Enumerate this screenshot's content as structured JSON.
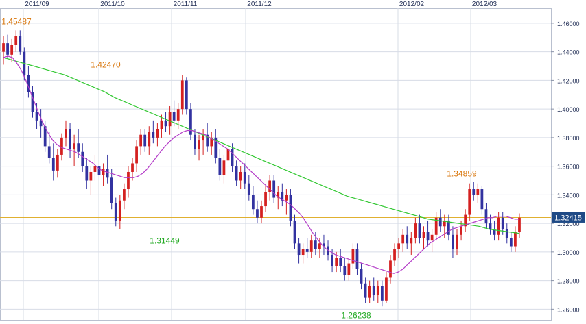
{
  "chart_data": {
    "type": "candlestick",
    "x_ticks": [
      "2011/09",
      "2011/10",
      "2011/11",
      "2011/12",
      "2012/02",
      "2012/03"
    ],
    "y_ticks": [
      "1.46000",
      "1.44000",
      "1.42000",
      "1.40000",
      "1.38000",
      "1.36000",
      "1.34000",
      "1.32000",
      "1.30000",
      "1.28000",
      "1.26000"
    ],
    "ylim": [
      1.2525,
      1.4705
    ],
    "current_price": 1.32415,
    "current_price_label": "1.32415",
    "annotations": [
      {
        "label": "1.45487",
        "value": 1.45487,
        "kind": "high",
        "color": "#d9770d"
      },
      {
        "label": "1.31449",
        "value": 1.31449,
        "kind": "low",
        "color": "#22aa22"
      },
      {
        "label": "1.42470",
        "value": 1.4247,
        "kind": "high",
        "color": "#d9770d"
      },
      {
        "label": "1.26238",
        "value": 1.26238,
        "kind": "low",
        "color": "#22aa22"
      },
      {
        "label": "1.34859",
        "value": 1.34859,
        "kind": "high",
        "color": "#d9770d"
      }
    ],
    "colors": {
      "up": "#d42020",
      "down": "#3232a0",
      "short_ma": "#b43cc8",
      "long_ma": "#32c832",
      "price_line": "#e0b030",
      "price_box": "#1f4a86",
      "grid": "#d7dce6",
      "tick_text": "#1d2a52"
    },
    "candles": [
      [
        1.44,
        1.451,
        1.431,
        1.446
      ],
      [
        1.446,
        1.452,
        1.436,
        1.438
      ],
      [
        1.438,
        1.449,
        1.433,
        1.445
      ],
      [
        1.445,
        1.455,
        1.44,
        1.451
      ],
      [
        1.451,
        1.455,
        1.438,
        1.44
      ],
      [
        1.44,
        1.443,
        1.42,
        1.424
      ],
      [
        1.424,
        1.43,
        1.408,
        1.412
      ],
      [
        1.412,
        1.416,
        1.394,
        1.398
      ],
      [
        1.398,
        1.404,
        1.386,
        1.392
      ],
      [
        1.392,
        1.4,
        1.38,
        1.388
      ],
      [
        1.388,
        1.392,
        1.37,
        1.374
      ],
      [
        1.374,
        1.384,
        1.362,
        1.366
      ],
      [
        1.366,
        1.376,
        1.35,
        1.357
      ],
      [
        1.357,
        1.372,
        1.352,
        1.368
      ],
      [
        1.368,
        1.383,
        1.364,
        1.38
      ],
      [
        1.38,
        1.392,
        1.374,
        1.386
      ],
      [
        1.386,
        1.39,
        1.366,
        1.372
      ],
      [
        1.372,
        1.382,
        1.36,
        1.376
      ],
      [
        1.376,
        1.386,
        1.366,
        1.37
      ],
      [
        1.37,
        1.376,
        1.356,
        1.36
      ],
      [
        1.36,
        1.366,
        1.344,
        1.35
      ],
      [
        1.35,
        1.36,
        1.34,
        1.356
      ],
      [
        1.356,
        1.368,
        1.35,
        1.36
      ],
      [
        1.36,
        1.366,
        1.35,
        1.354
      ],
      [
        1.354,
        1.362,
        1.346,
        1.358
      ],
      [
        1.358,
        1.368,
        1.348,
        1.352
      ],
      [
        1.352,
        1.358,
        1.33,
        1.334
      ],
      [
        1.334,
        1.338,
        1.318,
        1.322
      ],
      [
        1.322,
        1.34,
        1.316,
        1.336
      ],
      [
        1.336,
        1.348,
        1.33,
        1.344
      ],
      [
        1.344,
        1.36,
        1.338,
        1.356
      ],
      [
        1.356,
        1.366,
        1.35,
        1.362
      ],
      [
        1.362,
        1.378,
        1.356,
        1.374
      ],
      [
        1.374,
        1.386,
        1.368,
        1.382
      ],
      [
        1.382,
        1.386,
        1.37,
        1.374
      ],
      [
        1.374,
        1.388,
        1.368,
        1.384
      ],
      [
        1.384,
        1.392,
        1.376,
        1.38
      ],
      [
        1.38,
        1.39,
        1.374,
        1.386
      ],
      [
        1.386,
        1.396,
        1.38,
        1.392
      ],
      [
        1.392,
        1.398,
        1.384,
        1.388
      ],
      [
        1.388,
        1.402,
        1.382,
        1.398
      ],
      [
        1.398,
        1.406,
        1.388,
        1.392
      ],
      [
        1.392,
        1.404,
        1.386,
        1.4
      ],
      [
        1.4,
        1.424,
        1.396,
        1.42
      ],
      [
        1.42,
        1.422,
        1.396,
        1.4
      ],
      [
        1.4,
        1.404,
        1.378,
        1.382
      ],
      [
        1.382,
        1.386,
        1.368,
        1.372
      ],
      [
        1.372,
        1.382,
        1.364,
        1.378
      ],
      [
        1.378,
        1.386,
        1.368,
        1.382
      ],
      [
        1.382,
        1.39,
        1.37,
        1.374
      ],
      [
        1.374,
        1.384,
        1.368,
        1.38
      ],
      [
        1.38,
        1.386,
        1.362,
        1.366
      ],
      [
        1.366,
        1.372,
        1.35,
        1.354
      ],
      [
        1.354,
        1.368,
        1.348,
        1.364
      ],
      [
        1.364,
        1.378,
        1.358,
        1.372
      ],
      [
        1.372,
        1.376,
        1.356,
        1.36
      ],
      [
        1.36,
        1.364,
        1.346,
        1.35
      ],
      [
        1.35,
        1.36,
        1.344,
        1.356
      ],
      [
        1.356,
        1.362,
        1.344,
        1.348
      ],
      [
        1.348,
        1.354,
        1.336,
        1.34
      ],
      [
        1.34,
        1.346,
        1.326,
        1.33
      ],
      [
        1.33,
        1.336,
        1.32,
        1.324
      ],
      [
        1.324,
        1.336,
        1.32,
        1.332
      ],
      [
        1.332,
        1.346,
        1.328,
        1.342
      ],
      [
        1.342,
        1.354,
        1.336,
        1.35
      ],
      [
        1.35,
        1.354,
        1.334,
        1.338
      ],
      [
        1.338,
        1.346,
        1.33,
        1.342
      ],
      [
        1.342,
        1.348,
        1.332,
        1.336
      ],
      [
        1.336,
        1.344,
        1.326,
        1.34
      ],
      [
        1.34,
        1.344,
        1.318,
        1.322
      ],
      [
        1.322,
        1.326,
        1.302,
        1.306
      ],
      [
        1.306,
        1.31,
        1.292,
        1.298
      ],
      [
        1.298,
        1.306,
        1.292,
        1.302
      ],
      [
        1.302,
        1.31,
        1.296,
        1.3
      ],
      [
        1.3,
        1.312,
        1.296,
        1.308
      ],
      [
        1.308,
        1.314,
        1.298,
        1.302
      ],
      [
        1.302,
        1.31,
        1.296,
        1.306
      ],
      [
        1.306,
        1.312,
        1.298,
        1.304
      ],
      [
        1.304,
        1.308,
        1.294,
        1.298
      ],
      [
        1.298,
        1.302,
        1.286,
        1.29
      ],
      [
        1.29,
        1.3,
        1.286,
        1.296
      ],
      [
        1.296,
        1.302,
        1.286,
        1.29
      ],
      [
        1.29,
        1.296,
        1.28,
        1.284
      ],
      [
        1.284,
        1.296,
        1.28,
        1.292
      ],
      [
        1.292,
        1.306,
        1.288,
        1.302
      ],
      [
        1.302,
        1.306,
        1.284,
        1.288
      ],
      [
        1.288,
        1.292,
        1.274,
        1.278
      ],
      [
        1.278,
        1.282,
        1.264,
        1.268
      ],
      [
        1.268,
        1.28,
        1.264,
        1.276
      ],
      [
        1.276,
        1.282,
        1.266,
        1.27
      ],
      [
        1.27,
        1.28,
        1.264,
        1.276
      ],
      [
        1.276,
        1.28,
        1.262,
        1.266
      ],
      [
        1.266,
        1.286,
        1.264,
        1.282
      ],
      [
        1.282,
        1.298,
        1.278,
        1.294
      ],
      [
        1.294,
        1.306,
        1.29,
        1.302
      ],
      [
        1.302,
        1.31,
        1.296,
        1.306
      ],
      [
        1.306,
        1.316,
        1.3,
        1.312
      ],
      [
        1.312,
        1.318,
        1.302,
        1.306
      ],
      [
        1.306,
        1.314,
        1.298,
        1.31
      ],
      [
        1.31,
        1.324,
        1.306,
        1.32
      ],
      [
        1.32,
        1.326,
        1.306,
        1.31
      ],
      [
        1.31,
        1.318,
        1.302,
        1.314
      ],
      [
        1.314,
        1.322,
        1.304,
        1.308
      ],
      [
        1.308,
        1.316,
        1.3,
        1.312
      ],
      [
        1.312,
        1.328,
        1.308,
        1.324
      ],
      [
        1.324,
        1.33,
        1.314,
        1.318
      ],
      [
        1.318,
        1.326,
        1.31,
        1.322
      ],
      [
        1.322,
        1.326,
        1.308,
        1.312
      ],
      [
        1.312,
        1.318,
        1.296,
        1.302
      ],
      [
        1.302,
        1.316,
        1.298,
        1.312
      ],
      [
        1.312,
        1.322,
        1.308,
        1.318
      ],
      [
        1.318,
        1.33,
        1.314,
        1.326
      ],
      [
        1.326,
        1.348,
        1.322,
        1.344
      ],
      [
        1.344,
        1.349,
        1.336,
        1.34
      ],
      [
        1.34,
        1.348,
        1.334,
        1.344
      ],
      [
        1.344,
        1.346,
        1.326,
        1.33
      ],
      [
        1.33,
        1.334,
        1.316,
        1.32
      ],
      [
        1.32,
        1.326,
        1.312,
        1.316
      ],
      [
        1.316,
        1.322,
        1.308,
        1.312
      ],
      [
        1.312,
        1.328,
        1.308,
        1.324
      ],
      [
        1.324,
        1.328,
        1.312,
        1.316
      ],
      [
        1.316,
        1.32,
        1.306,
        1.31
      ],
      [
        1.31,
        1.314,
        1.3,
        1.304
      ],
      [
        1.304,
        1.318,
        1.3,
        1.314
      ],
      [
        1.314,
        1.327,
        1.31,
        1.324
      ]
    ],
    "short_ma": [
      1.436,
      1.437,
      1.436,
      1.432,
      1.427,
      1.42,
      1.412,
      1.404,
      1.396,
      1.389,
      1.383,
      1.378,
      1.375,
      1.373,
      1.372,
      1.371,
      1.37,
      1.368,
      1.366,
      1.364,
      1.362,
      1.359,
      1.357,
      1.356,
      1.355,
      1.354,
      1.353,
      1.352,
      1.352,
      1.352,
      1.353,
      1.355,
      1.358,
      1.362,
      1.366,
      1.37,
      1.374,
      1.377,
      1.38,
      1.382,
      1.384,
      1.385,
      1.385,
      1.384,
      1.383,
      1.382,
      1.38,
      1.378,
      1.376,
      1.374,
      1.372,
      1.369,
      1.366,
      1.363,
      1.36,
      1.357,
      1.354,
      1.351,
      1.348,
      1.345,
      1.342,
      1.339,
      1.337,
      1.335,
      1.333,
      1.33,
      1.327,
      1.323,
      1.318,
      1.313,
      1.309,
      1.305,
      1.302,
      1.3,
      1.298,
      1.297,
      1.296,
      1.295,
      1.294,
      1.293,
      1.292,
      1.291,
      1.29,
      1.289,
      1.288,
      1.287,
      1.286,
      1.285,
      1.286,
      1.288,
      1.291,
      1.294,
      1.297,
      1.3,
      1.303,
      1.306,
      1.308,
      1.31,
      1.312,
      1.314,
      1.316,
      1.317,
      1.318,
      1.319,
      1.32,
      1.321,
      1.322,
      1.323,
      1.324,
      1.324,
      1.325,
      1.325,
      1.325,
      1.324,
      1.323,
      1.323
    ],
    "short_ma_start": 0,
    "long_ma": [
      1.436,
      1.434,
      1.432,
      1.43,
      1.428,
      1.426,
      1.424,
      1.421,
      1.418,
      1.415,
      1.412,
      1.408,
      1.405,
      1.402,
      1.399,
      1.396,
      1.393,
      1.39,
      1.387,
      1.384,
      1.381,
      1.378,
      1.375,
      1.372,
      1.369,
      1.366,
      1.363,
      1.36,
      1.357,
      1.354,
      1.351,
      1.348,
      1.345,
      1.342,
      1.339,
      1.337,
      1.335,
      1.333,
      1.331,
      1.329,
      1.327,
      1.325,
      1.323,
      1.322,
      1.321,
      1.32,
      1.319,
      1.318,
      1.316,
      1.315,
      1.314,
      1.313
    ],
    "long_ma_start": 0
  }
}
